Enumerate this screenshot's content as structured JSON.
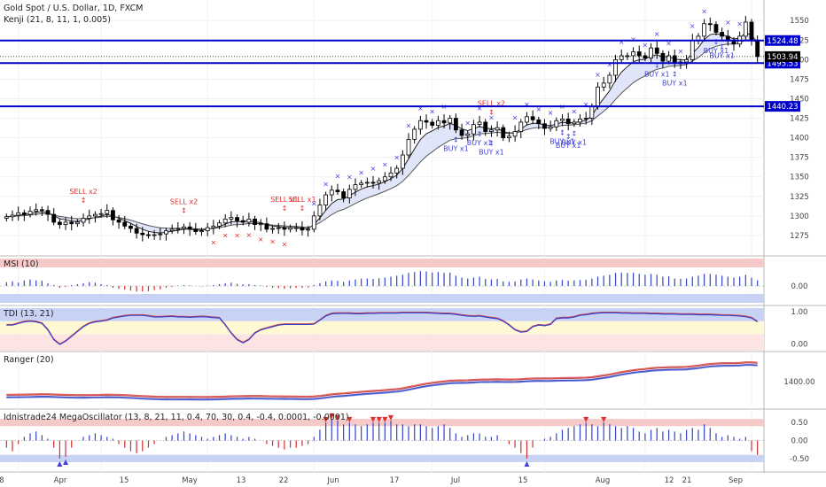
{
  "chart_data": [
    {
      "type": "candlestick",
      "title": "Gold Spot / U.S. Dollar, 1D, FXCM",
      "indicator_label": "Kenji (21, 8, 11, 1, 0.005)",
      "ylim": [
        1250,
        1565
      ],
      "yticks": [
        1275,
        1300,
        1325,
        1350,
        1375,
        1400,
        1425,
        1450,
        1475,
        1500,
        1525,
        1550
      ],
      "x_labels": [
        "8",
        "Apr",
        "15",
        "May",
        "13",
        "22",
        "Jun",
        "17",
        "Jul",
        "15",
        "Aug",
        "12",
        "21",
        "Sep"
      ],
      "horizontal_levels": [
        {
          "value": 1524.48,
          "label": "1524.48"
        },
        {
          "value": 1495.53,
          "label": "1495.53"
        },
        {
          "value": 1440.23,
          "label": "1440.23"
        }
      ],
      "last_price": {
        "value": 1503.94,
        "label": "1503.94"
      },
      "closes": [
        1299,
        1301,
        1304,
        1302,
        1306,
        1308,
        1307,
        1302,
        1292,
        1289,
        1292,
        1290,
        1292,
        1297,
        1300,
        1302,
        1303,
        1307,
        1295,
        1292,
        1287,
        1284,
        1278,
        1276,
        1275,
        1276,
        1277,
        1281,
        1283,
        1284,
        1286,
        1283,
        1280,
        1281,
        1285,
        1287,
        1291,
        1296,
        1298,
        1294,
        1292,
        1296,
        1289,
        1290,
        1283,
        1284,
        1285,
        1283,
        1285,
        1285,
        1282,
        1283,
        1300,
        1314,
        1327,
        1333,
        1331,
        1323,
        1334,
        1340,
        1342,
        1343,
        1342,
        1345,
        1350,
        1355,
        1361,
        1378,
        1398,
        1411,
        1422,
        1420,
        1416,
        1422,
        1419,
        1425,
        1410,
        1403,
        1405,
        1417,
        1420,
        1408,
        1410,
        1413,
        1400,
        1402,
        1408,
        1420,
        1427,
        1423,
        1418,
        1412,
        1414,
        1422,
        1424,
        1418,
        1420,
        1424,
        1425,
        1440,
        1465,
        1470,
        1480,
        1500,
        1505,
        1505,
        1510,
        1505,
        1502,
        1515,
        1508,
        1498,
        1505,
        1495,
        1497,
        1500,
        1525,
        1530,
        1546,
        1545,
        1535,
        1530,
        1525,
        1520,
        1530,
        1548,
        1525,
        1504
      ],
      "buy_signals": [
        "BUY x1",
        "BUY x1",
        "BUY x1",
        "BUY x1",
        "BUY x1",
        "BUY x1",
        "BUY x1",
        "BUY x1",
        "BUY x1",
        "BUY x1"
      ],
      "sell_signals": [
        "SELL x2",
        "SELL x2",
        "SELL x1",
        "SELL x1",
        "SELL x2"
      ]
    },
    {
      "type": "bar",
      "title": "MSI (10)",
      "yticks": [
        "0.00"
      ],
      "ylim": [
        -0.9,
        0.9
      ],
      "values": [
        0.2,
        0.25,
        0.18,
        0.3,
        0.35,
        0.3,
        0.28,
        0.15,
        0.05,
        -0.1,
        -0.05,
        0.05,
        0.1,
        0.15,
        0.2,
        0.18,
        0.1,
        0.05,
        -0.1,
        -0.15,
        -0.2,
        -0.25,
        -0.3,
        -0.3,
        -0.28,
        -0.22,
        -0.18,
        -0.1,
        -0.05,
        0.02,
        0.05,
        0.03,
        0.0,
        -0.02,
        0.02,
        0.05,
        0.1,
        0.15,
        0.18,
        0.12,
        0.08,
        0.1,
        0.05,
        0.03,
        -0.05,
        -0.1,
        -0.12,
        -0.15,
        -0.12,
        -0.1,
        -0.1,
        -0.08,
        0.05,
        0.15,
        0.25,
        0.3,
        0.28,
        0.22,
        0.3,
        0.35,
        0.4,
        0.4,
        0.38,
        0.42,
        0.45,
        0.5,
        0.55,
        0.6,
        0.7,
        0.75,
        0.8,
        0.78,
        0.72,
        0.75,
        0.7,
        0.72,
        0.55,
        0.45,
        0.4,
        0.45,
        0.5,
        0.38,
        0.35,
        0.38,
        0.25,
        0.22,
        0.25,
        0.35,
        0.4,
        0.35,
        0.3,
        0.25,
        0.22,
        0.3,
        0.32,
        0.28,
        0.3,
        0.32,
        0.33,
        0.4,
        0.5,
        0.55,
        0.6,
        0.7,
        0.72,
        0.7,
        0.72,
        0.65,
        0.6,
        0.65,
        0.6,
        0.5,
        0.52,
        0.4,
        0.38,
        0.4,
        0.5,
        0.55,
        0.65,
        0.65,
        0.6,
        0.55,
        0.5,
        0.45,
        0.5,
        0.6,
        0.45,
        0.3
      ]
    },
    {
      "type": "line",
      "title": "TDI (13, 21)",
      "yticks": [
        "1.00",
        "0.00"
      ],
      "ylim": [
        -0.1,
        1.05
      ],
      "values": [
        0.6,
        0.6,
        0.65,
        0.7,
        0.72,
        0.7,
        0.65,
        0.45,
        0.15,
        0.0,
        0.1,
        0.25,
        0.4,
        0.55,
        0.65,
        0.7,
        0.72,
        0.75,
        0.82,
        0.85,
        0.88,
        0.9,
        0.9,
        0.9,
        0.88,
        0.85,
        0.85,
        0.86,
        0.87,
        0.85,
        0.85,
        0.84,
        0.85,
        0.86,
        0.85,
        0.83,
        0.82,
        0.6,
        0.35,
        0.15,
        0.05,
        0.15,
        0.35,
        0.45,
        0.5,
        0.55,
        0.6,
        0.62,
        0.62,
        0.62,
        0.62,
        0.62,
        0.63,
        0.75,
        0.88,
        0.95,
        0.96,
        0.96,
        0.96,
        0.95,
        0.95,
        0.96,
        0.96,
        0.97,
        0.97,
        0.97,
        0.97,
        0.98,
        0.98,
        0.98,
        0.98,
        0.98,
        0.97,
        0.96,
        0.95,
        0.95,
        0.93,
        0.9,
        0.88,
        0.87,
        0.88,
        0.85,
        0.82,
        0.8,
        0.72,
        0.6,
        0.45,
        0.38,
        0.4,
        0.55,
        0.6,
        0.58,
        0.62,
        0.8,
        0.82,
        0.82,
        0.85,
        0.9,
        0.92,
        0.95,
        0.97,
        0.98,
        0.98,
        0.98,
        0.97,
        0.97,
        0.96,
        0.96,
        0.96,
        0.95,
        0.95,
        0.94,
        0.94,
        0.94,
        0.93,
        0.93,
        0.93,
        0.92,
        0.92,
        0.92,
        0.91,
        0.9,
        0.9,
        0.89,
        0.88,
        0.86,
        0.82,
        0.7
      ]
    },
    {
      "type": "line",
      "title": "Ranger (20)",
      "yticks": [
        "1400.00"
      ],
      "ylim": [
        1240,
        1580
      ]
    },
    {
      "type": "bar",
      "title": "Idnistrade24 MegaOscillator (13, 8, 21, 11, 0.4, 70, 30, 0.4, -0.4, 0.0001, -0.0001)",
      "yticks": [
        "0.50",
        "0.00",
        "-0.50"
      ],
      "ylim": [
        -0.75,
        0.75
      ],
      "values": [
        -0.2,
        -0.3,
        -0.1,
        0.1,
        0.2,
        0.25,
        0.15,
        0.05,
        -0.2,
        -0.5,
        -0.45,
        -0.2,
        0.0,
        0.1,
        0.15,
        0.2,
        0.15,
        0.1,
        0.05,
        -0.1,
        -0.2,
        -0.3,
        -0.35,
        -0.3,
        -0.2,
        -0.1,
        0.0,
        0.1,
        0.15,
        0.2,
        0.25,
        0.2,
        0.15,
        0.1,
        0.05,
        0.1,
        0.15,
        0.2,
        0.15,
        0.1,
        0.05,
        0.1,
        0.05,
        0.0,
        -0.1,
        -0.15,
        -0.2,
        -0.25,
        -0.2,
        -0.2,
        -0.15,
        -0.1,
        0.1,
        0.3,
        0.5,
        0.6,
        0.55,
        0.45,
        0.5,
        0.45,
        0.4,
        0.45,
        0.5,
        0.5,
        0.5,
        0.55,
        0.45,
        0.45,
        0.4,
        0.45,
        0.45,
        0.4,
        0.35,
        0.4,
        0.45,
        0.35,
        0.2,
        0.1,
        0.15,
        0.2,
        0.2,
        0.1,
        0.1,
        0.15,
        0.0,
        -0.1,
        -0.2,
        -0.35,
        -0.5,
        -0.2,
        0.0,
        0.05,
        0.1,
        0.2,
        0.3,
        0.35,
        0.4,
        0.45,
        0.5,
        0.45,
        0.4,
        0.5,
        0.45,
        0.4,
        0.35,
        0.4,
        0.35,
        0.25,
        0.2,
        0.3,
        0.35,
        0.25,
        0.3,
        0.25,
        0.2,
        0.3,
        0.35,
        0.3,
        0.45,
        0.35,
        0.2,
        0.1,
        0.15,
        0.1,
        0.05,
        0.1,
        -0.3,
        -0.4
      ]
    }
  ],
  "colors": {
    "up": "#ffffff",
    "down": "#000000",
    "level": "#0000cc",
    "buy": "#4444dd",
    "sell": "#e03030",
    "band_blue": "#c8d2f4",
    "band_red": "#f6c9c9",
    "band_yellow": "#fff8d4"
  }
}
